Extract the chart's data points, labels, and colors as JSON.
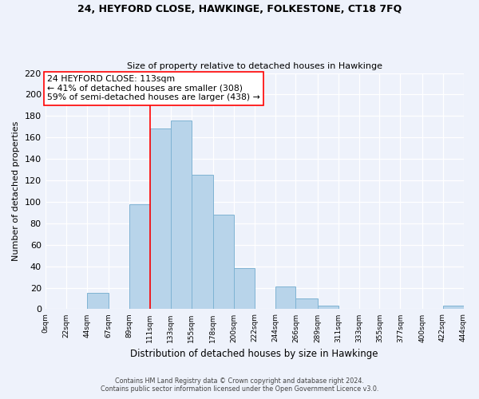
{
  "title": "24, HEYFORD CLOSE, HAWKINGE, FOLKESTONE, CT18 7FQ",
  "subtitle": "Size of property relative to detached houses in Hawkinge",
  "xlabel": "Distribution of detached houses by size in Hawkinge",
  "ylabel": "Number of detached properties",
  "bar_color": "#b8d4ea",
  "bar_edge_color": "#7fb3d3",
  "vline_color": "red",
  "vline_x": 111,
  "annotation_title": "24 HEYFORD CLOSE: 113sqm",
  "annotation_line1": "← 41% of detached houses are smaller (308)",
  "annotation_line2": "59% of semi-detached houses are larger (438) →",
  "tick_labels": [
    "0sqm",
    "22sqm",
    "44sqm",
    "67sqm",
    "89sqm",
    "111sqm",
    "133sqm",
    "155sqm",
    "178sqm",
    "200sqm",
    "222sqm",
    "244sqm",
    "266sqm",
    "289sqm",
    "311sqm",
    "333sqm",
    "355sqm",
    "377sqm",
    "400sqm",
    "422sqm",
    "444sqm"
  ],
  "bin_edges": [
    0,
    22,
    44,
    67,
    89,
    111,
    133,
    155,
    178,
    200,
    222,
    244,
    266,
    289,
    311,
    333,
    355,
    377,
    400,
    422,
    444
  ],
  "bar_heights": [
    0,
    0,
    15,
    0,
    98,
    168,
    176,
    125,
    88,
    38,
    0,
    21,
    10,
    3,
    0,
    0,
    0,
    0,
    0,
    3
  ],
  "ylim": [
    0,
    220
  ],
  "yticks": [
    0,
    20,
    40,
    60,
    80,
    100,
    120,
    140,
    160,
    180,
    200,
    220
  ],
  "footer_line1": "Contains HM Land Registry data © Crown copyright and database right 2024.",
  "footer_line2": "Contains public sector information licensed under the Open Government Licence v3.0.",
  "background_color": "#eef2fb"
}
